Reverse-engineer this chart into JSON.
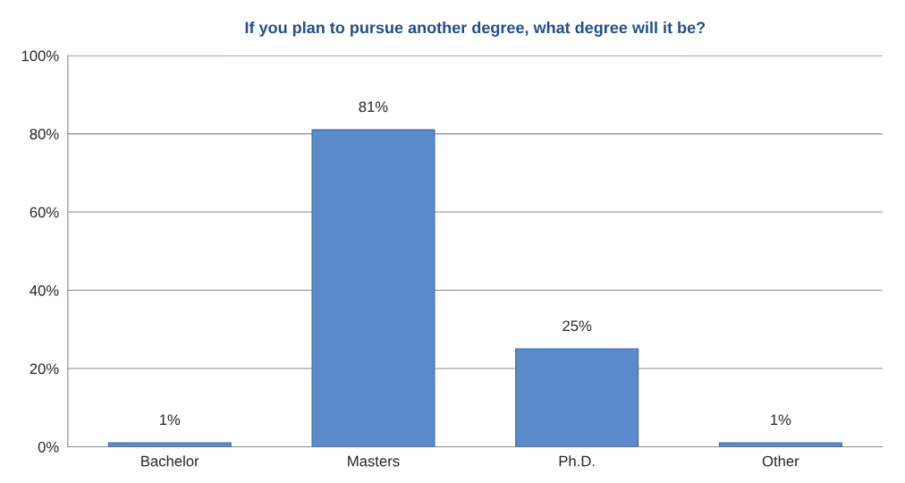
{
  "chart_data": {
    "type": "bar",
    "title": "If you plan to pursue another degree, what degree will it be?",
    "categories": [
      "Bachelor",
      "Masters",
      "Ph.D.",
      "Other"
    ],
    "values": [
      1,
      81,
      25,
      1
    ],
    "value_labels": [
      "1%",
      "81%",
      "25%",
      "1%"
    ],
    "color": "#5b8bcb",
    "ylim": [
      0,
      100
    ],
    "yticks": [
      {
        "value": 0,
        "label": "0%"
      },
      {
        "value": 20,
        "label": "20%"
      },
      {
        "value": 40,
        "label": "40%"
      },
      {
        "value": 60,
        "label": "60%"
      },
      {
        "value": 80,
        "label": "80%"
      },
      {
        "value": 100,
        "label": "100%"
      }
    ],
    "grid": "y"
  }
}
